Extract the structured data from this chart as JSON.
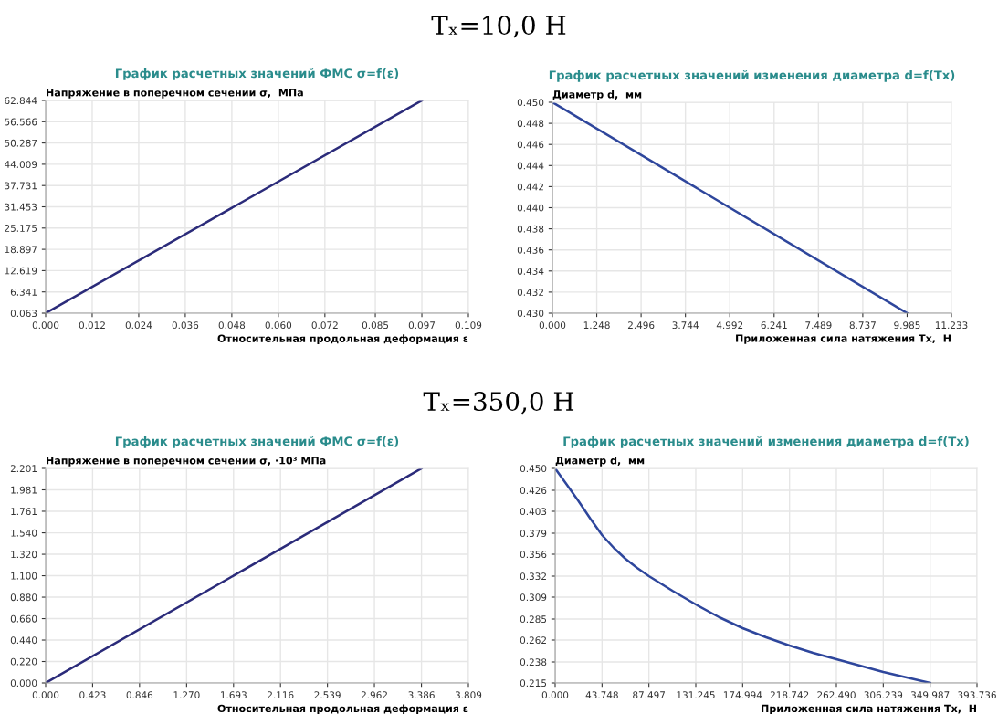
{
  "chart_data": [
    {
      "type": "line",
      "title": "График расчетных значений ФМС σ=f(ε)",
      "ylabel": "Напряжение в поперечном сечении σ,  МПа",
      "xlabel": "Относительная продольная деформация ε",
      "annotations": [
        "Tₓ=10,0 Н"
      ],
      "grid": true,
      "legend": false,
      "series": [
        {
          "color": "#2b2b7a",
          "x": [
            0,
            0.097
          ],
          "values": [
            0.063,
            62.844
          ]
        }
      ],
      "xlim": [
        0,
        0.109
      ],
      "ylim": [
        0.063,
        62.844
      ],
      "xticks": [
        {
          "value": 0,
          "label": "0.000"
        },
        0.012,
        0.024,
        0.036,
        0.048,
        {
          "value": 0.06,
          "label": "0.060"
        },
        0.072,
        0.085,
        0.097,
        0.109
      ],
      "yticks": [
        0.063,
        6.341,
        12.619,
        18.897,
        25.175,
        31.453,
        37.731,
        44.009,
        50.287,
        56.566,
        62.844
      ]
    },
    {
      "type": "line",
      "title": "График расчетных значений изменения диаметра d=f(Tx)",
      "ylabel": "Диаметр d,  мм",
      "xlabel": "Приложенная сила натяжения Tx,  Н",
      "grid": true,
      "legend": false,
      "series": [
        {
          "color": "#2e469c",
          "x": [
            0,
            9.985
          ],
          "values": [
            0.45,
            0.43
          ]
        }
      ],
      "xlim": [
        0,
        11.233
      ],
      "ylim": [
        0.43,
        0.45
      ],
      "xticks": [
        {
          "value": 0,
          "label": "0.000"
        },
        1.248,
        2.496,
        3.744,
        4.992,
        6.241,
        7.489,
        8.737,
        9.985,
        11.233
      ],
      "yticks": [
        {
          "value": 0.43,
          "label": "0.430"
        },
        0.432,
        0.434,
        0.436,
        0.438,
        {
          "value": 0.44,
          "label": "0.440"
        },
        0.442,
        0.444,
        0.446,
        0.448,
        {
          "value": 0.45,
          "label": "0.450"
        }
      ]
    },
    {
      "type": "line",
      "title": "График расчетных значений ФМС σ=f(ε)",
      "ylabel": "Напряжение в поперечном сечении σ, ·10³ МПа",
      "xlabel": "Относительная продольная деформация ε",
      "annotations": [
        "Tₓ=350,0 Н"
      ],
      "grid": true,
      "legend": false,
      "series": [
        {
          "color": "#2b2b7a",
          "x": [
            0,
            3.386
          ],
          "values": [
            0,
            2.201
          ]
        }
      ],
      "xlim": [
        0,
        3.809
      ],
      "ylim": [
        0,
        2.201
      ],
      "xticks": [
        {
          "value": 0,
          "label": "0.000"
        },
        0.423,
        0.846,
        {
          "value": 1.27,
          "label": "1.270"
        },
        1.693,
        2.116,
        2.539,
        2.962,
        3.386,
        3.809
      ],
      "yticks": [
        {
          "value": 0,
          "label": "0.000"
        },
        {
          "value": 0.22,
          "label": "0.220"
        },
        {
          "value": 0.44,
          "label": "0.440"
        },
        {
          "value": 0.66,
          "label": "0.660"
        },
        {
          "value": 0.88,
          "label": "0.880"
        },
        {
          "value": 1.1,
          "label": "1.100"
        },
        {
          "value": 1.32,
          "label": "1.320"
        },
        {
          "value": 1.54,
          "label": "1.540"
        },
        1.761,
        1.981,
        2.201
      ]
    },
    {
      "type": "line",
      "title": "График расчетных значений изменения диаметра d=f(Tx)",
      "ylabel": "Диаметр d,  мм",
      "xlabel": "Приложенная сила натяжения Tx,  Н",
      "grid": true,
      "legend": false,
      "series": [
        {
          "color": "#2e469c",
          "x": [
            0,
            11,
            21.9,
            32.8,
            43.748,
            54.7,
            65.6,
            76.5,
            87.497,
            109.4,
            131.245,
            153.1,
            174.994,
            196.9,
            218.742,
            240.6,
            262.49,
            284.4,
            306.239,
            328.1,
            349.987
          ],
          "values": [
            0.45,
            0.432,
            0.414,
            0.395,
            0.377,
            0.363,
            0.351,
            0.341,
            0.332,
            0.316,
            0.301,
            0.287,
            0.275,
            0.265,
            0.256,
            0.248,
            0.241,
            0.234,
            0.227,
            0.221,
            0.215
          ]
        }
      ],
      "xlim": [
        0,
        393.736
      ],
      "ylim": [
        0.215,
        0.45
      ],
      "xticks": [
        {
          "value": 0,
          "label": "0.000"
        },
        43.748,
        87.497,
        131.245,
        174.994,
        218.742,
        {
          "value": 262.49,
          "label": "262.490"
        },
        306.239,
        349.987,
        393.736
      ],
      "yticks": [
        0.215,
        0.238,
        0.262,
        0.285,
        0.309,
        0.332,
        0.356,
        0.379,
        0.403,
        0.426,
        {
          "value": 0.45,
          "label": "0.450"
        }
      ]
    }
  ]
}
